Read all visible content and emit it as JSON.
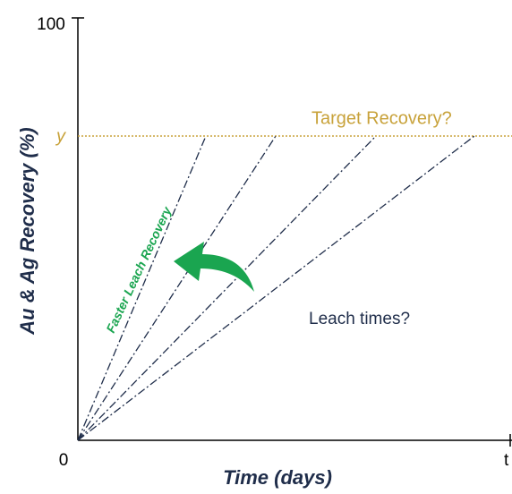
{
  "title": null,
  "axes": {
    "x_label": "Time (days)",
    "y_label": "Au & Ag Recovery (%)",
    "x_origin": "0",
    "x_end": "t",
    "y_top": "100",
    "y_target": "y"
  },
  "annotations": {
    "target": "Target Recovery?",
    "leach_times": "Leach times?",
    "faster": "Faster Leach Recovery"
  }
}
